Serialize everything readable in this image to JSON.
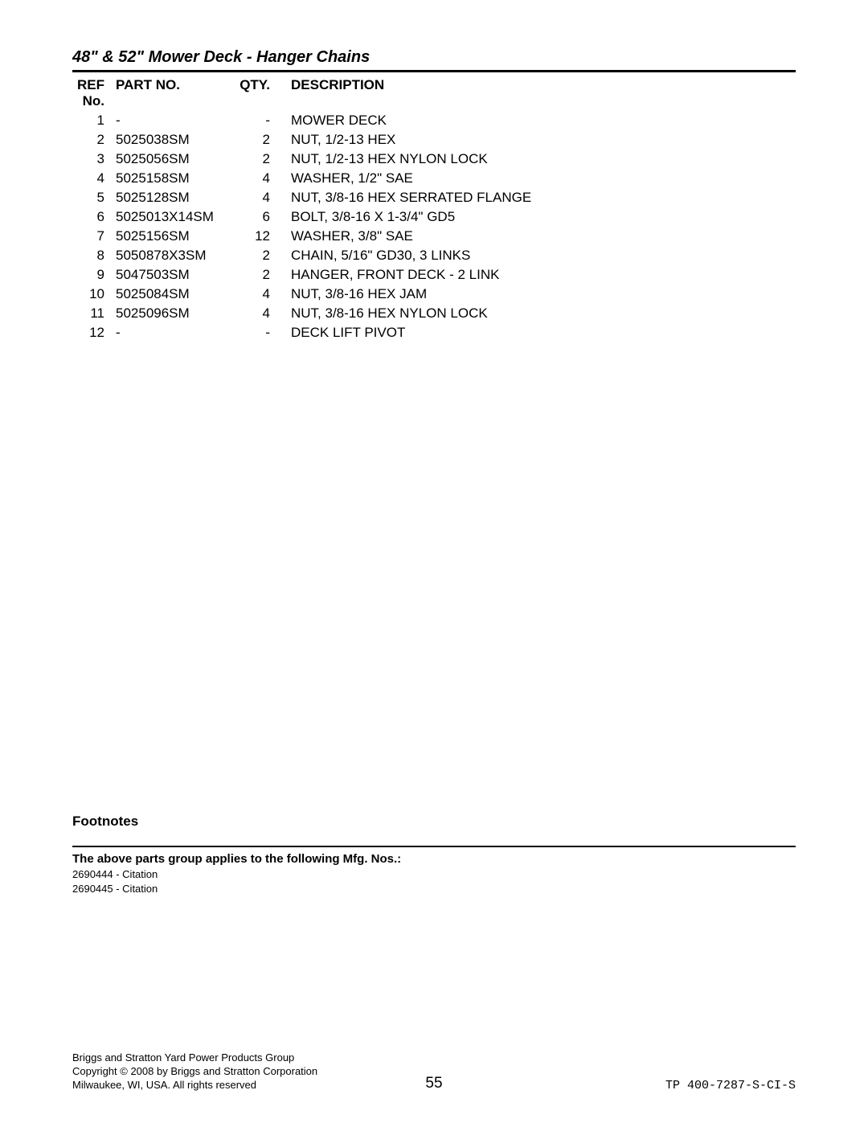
{
  "title": "48\" & 52\" Mower Deck - Hanger Chains",
  "columns": {
    "ref": "REF No.",
    "part": "PART NO.",
    "qty": "QTY.",
    "desc": "DESCRIPTION"
  },
  "rows": [
    {
      "ref": "1",
      "part": "-",
      "qty": "-",
      "desc": "MOWER DECK"
    },
    {
      "ref": "2",
      "part": "5025038SM",
      "qty": "2",
      "desc": "NUT, 1/2-13 HEX"
    },
    {
      "ref": "3",
      "part": "5025056SM",
      "qty": "2",
      "desc": "NUT, 1/2-13 HEX NYLON LOCK"
    },
    {
      "ref": "4",
      "part": "5025158SM",
      "qty": "4",
      "desc": "WASHER, 1/2\" SAE"
    },
    {
      "ref": "5",
      "part": "5025128SM",
      "qty": "4",
      "desc": "NUT, 3/8-16 HEX SERRATED FLANGE"
    },
    {
      "ref": "6",
      "part": "5025013X14SM",
      "qty": "6",
      "desc": "BOLT, 3/8-16 X 1-3/4\" GD5"
    },
    {
      "ref": "7",
      "part": "5025156SM",
      "qty": "12",
      "desc": "WASHER, 3/8\" SAE"
    },
    {
      "ref": "8",
      "part": "5050878X3SM",
      "qty": "2",
      "desc": "CHAIN, 5/16\" GD30, 3 LINKS"
    },
    {
      "ref": "9",
      "part": "5047503SM",
      "qty": "2",
      "desc": "HANGER, FRONT DECK - 2 LINK"
    },
    {
      "ref": "10",
      "part": "5025084SM",
      "qty": "4",
      "desc": "NUT, 3/8-16 HEX JAM"
    },
    {
      "ref": "11",
      "part": "5025096SM",
      "qty": "4",
      "desc": "NUT, 3/8-16 HEX NYLON LOCK"
    },
    {
      "ref": "12",
      "part": "-",
      "qty": "-",
      "desc": "DECK LIFT PIVOT"
    }
  ],
  "footnotes_heading": "Footnotes",
  "applies_heading": "The above parts group applies to the following Mfg. Nos.:",
  "mfg": [
    "2690444 - Citation",
    "2690445 - Citation"
  ],
  "footer": {
    "line1": "Briggs and Stratton Yard Power Products Group",
    "line2": "Copyright © 2008 by Briggs and Stratton Corporation",
    "line3": "Milwaukee, WI, USA. All rights reserved",
    "page": "55",
    "doc": "TP 400-7287-S-CI-S"
  }
}
